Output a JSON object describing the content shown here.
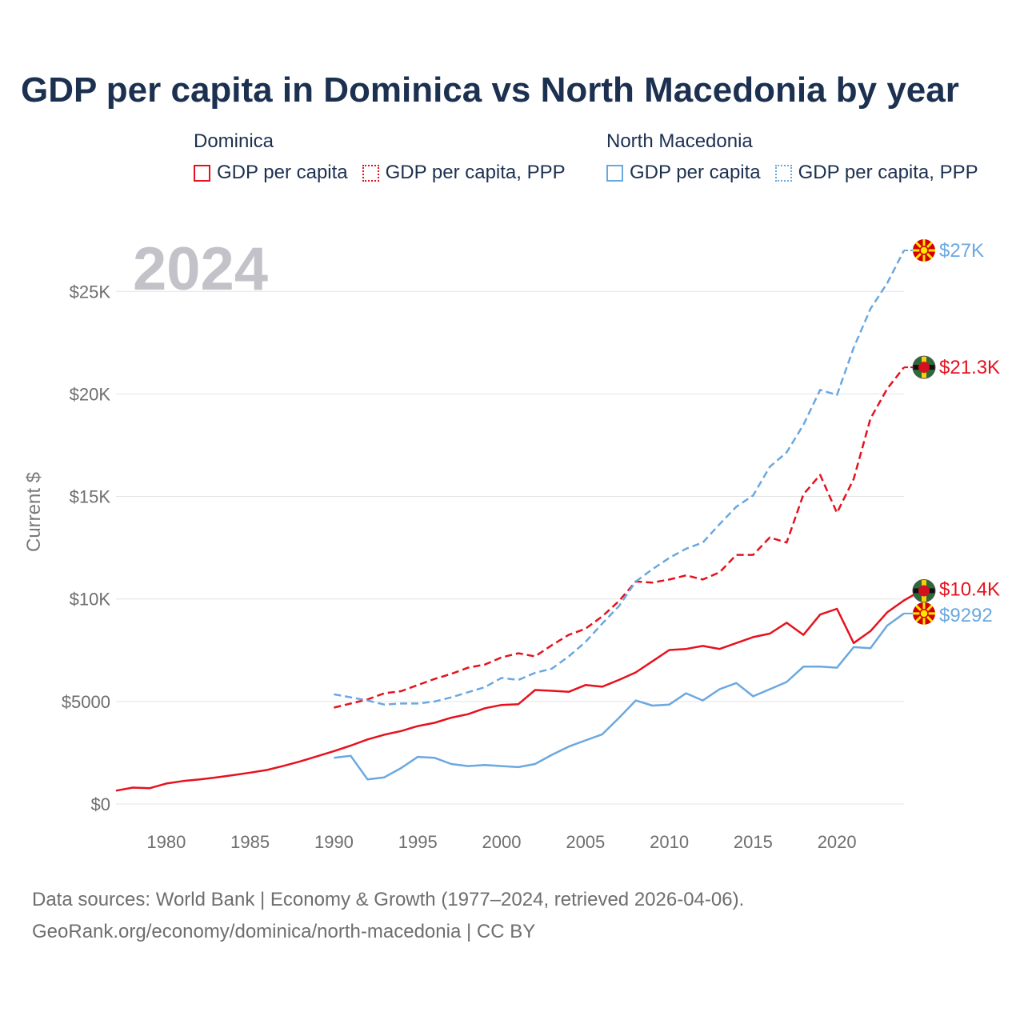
{
  "title": "GDP per capita in Dominica vs North Macedonia by year",
  "legend": {
    "dominica": {
      "title": "Dominica",
      "solid_label": "GDP per capita",
      "dotted_label": "GDP per capita, PPP"
    },
    "macedonia": {
      "title": "North Macedonia",
      "solid_label": "GDP per capita",
      "dotted_label": "GDP per capita, PPP"
    }
  },
  "source": {
    "line1": "Data sources: World Bank | Economy & Growth (1977–2024, retrieved 2026-04-06).",
    "line2": "GeoRank.org/economy/dominica/north-macedonia | CC BY"
  },
  "colors": {
    "dominica": "#e6111e",
    "macedonia": "#6aa8e0",
    "grid": "#e3e3e3"
  },
  "chart_data": {
    "type": "line",
    "title": "GDP per capita in Dominica vs North Macedonia by year",
    "xlabel": "",
    "ylabel": "Current $",
    "year_label": "2024",
    "xlim": [
      1977,
      2024
    ],
    "ylim": [
      0,
      27000
    ],
    "x_ticks": [
      1980,
      1985,
      1990,
      1995,
      2000,
      2005,
      2010,
      2015,
      2020
    ],
    "y_ticks": [
      {
        "value": 0,
        "label": "$0"
      },
      {
        "value": 5000,
        "label": "$5000"
      },
      {
        "value": 10000,
        "label": "$10K"
      },
      {
        "value": 15000,
        "label": "$15K"
      },
      {
        "value": 20000,
        "label": "$20K"
      },
      {
        "value": 25000,
        "label": "$25K"
      }
    ],
    "grid": true,
    "series": [
      {
        "name": "Dominica GDP per capita",
        "country": "dominica",
        "style": "solid",
        "end_label": "$10.4K",
        "start_year": 1977,
        "values": [
          650,
          800,
          770,
          1000,
          1120,
          1200,
          1300,
          1410,
          1530,
          1660,
          1860,
          2080,
          2330,
          2580,
          2850,
          3150,
          3380,
          3560,
          3800,
          3960,
          4210,
          4380,
          4670,
          4830,
          4870,
          5560,
          5520,
          5470,
          5800,
          5720,
          6050,
          6420,
          6960,
          7510,
          7560,
          7710,
          7560,
          7850,
          8140,
          8310,
          8840,
          8250,
          9240,
          9520,
          7850,
          8430,
          9350,
          9930,
          10400
        ]
      },
      {
        "name": "Dominica GDP per capita, PPP",
        "country": "dominica",
        "style": "dashed",
        "end_label": "$21.3K",
        "start_year": 1990,
        "values": [
          4700,
          4900,
          5100,
          5400,
          5500,
          5800,
          6100,
          6350,
          6650,
          6800,
          7150,
          7350,
          7200,
          7750,
          8250,
          8550,
          9150,
          9900,
          10850,
          10800,
          10950,
          11150,
          10950,
          11300,
          12150,
          12150,
          13000,
          12750,
          15100,
          16050,
          14200,
          15850,
          18800,
          20250,
          21300
        ]
      },
      {
        "name": "North Macedonia GDP per capita",
        "country": "macedonia",
        "style": "solid",
        "end_label": "$9292",
        "start_year": 1990,
        "values": [
          2250,
          2350,
          1200,
          1300,
          1750,
          2300,
          2250,
          1950,
          1850,
          1900,
          1850,
          1800,
          1950,
          2400,
          2800,
          3100,
          3400,
          4200,
          5050,
          4800,
          4850,
          5400,
          5050,
          5600,
          5900,
          5250,
          5600,
          5950,
          6700,
          6700,
          6650,
          7650,
          7600,
          8700,
          9292
        ]
      },
      {
        "name": "North Macedonia GDP per capita, PPP",
        "country": "macedonia",
        "style": "dashed",
        "end_label": "$27K",
        "start_year": 1990,
        "values": [
          5350,
          5200,
          5050,
          4850,
          4900,
          4900,
          5000,
          5200,
          5450,
          5700,
          6150,
          6050,
          6400,
          6600,
          7200,
          7900,
          8800,
          9650,
          10850,
          11450,
          12000,
          12450,
          12750,
          13650,
          14500,
          15050,
          16450,
          17150,
          18500,
          20200,
          19950,
          22250,
          24150,
          25400,
          27000
        ]
      }
    ]
  }
}
